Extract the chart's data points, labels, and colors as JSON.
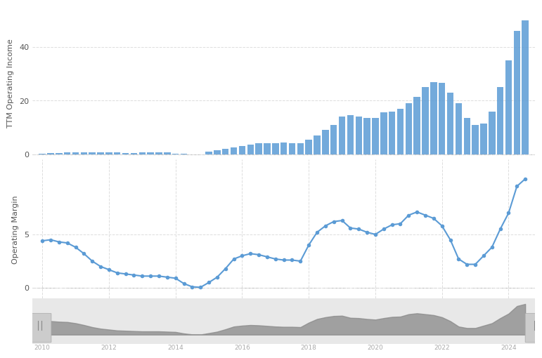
{
  "bar_years": [
    2010.0,
    2010.25,
    2010.5,
    2010.75,
    2011.0,
    2011.25,
    2011.5,
    2011.75,
    2012.0,
    2012.25,
    2012.5,
    2012.75,
    2013.0,
    2013.25,
    2013.5,
    2013.75,
    2014.0,
    2014.25,
    2014.5,
    2014.75,
    2015.0,
    2015.25,
    2015.5,
    2015.75,
    2016.0,
    2016.25,
    2016.5,
    2016.75,
    2017.0,
    2017.25,
    2017.5,
    2017.75,
    2018.0,
    2018.25,
    2018.5,
    2018.75,
    2019.0,
    2019.25,
    2019.5,
    2019.75,
    2020.0,
    2020.25,
    2020.5,
    2020.75,
    2021.0,
    2021.25,
    2021.5,
    2021.75,
    2022.0,
    2022.25,
    2022.5,
    2022.75,
    2023.0,
    2023.25,
    2023.5,
    2023.75,
    2024.0,
    2024.25,
    2024.5
  ],
  "bar_values": [
    0.3,
    0.4,
    0.5,
    0.6,
    0.7,
    0.8,
    0.8,
    0.7,
    0.7,
    0.6,
    0.5,
    0.5,
    0.7,
    0.7,
    0.8,
    0.7,
    0.2,
    0.1,
    0.05,
    0.05,
    1.0,
    1.5,
    2.0,
    2.5,
    3.0,
    3.5,
    4.0,
    4.2,
    4.1,
    4.3,
    4.0,
    4.1,
    5.5,
    7.0,
    9.0,
    11.0,
    14.0,
    14.5,
    14.0,
    13.5,
    13.5,
    15.5,
    16.0,
    17.0,
    19.0,
    21.5,
    25.0,
    27.0,
    26.5,
    23.0,
    19.0,
    13.5,
    11.0,
    11.5,
    16.0,
    25.0,
    35.0,
    46.0,
    50.0
  ],
  "line_years": [
    2010.0,
    2010.25,
    2010.5,
    2010.75,
    2011.0,
    2011.25,
    2011.5,
    2011.75,
    2012.0,
    2012.25,
    2012.5,
    2012.75,
    2013.0,
    2013.25,
    2013.5,
    2013.75,
    2014.0,
    2014.25,
    2014.5,
    2014.75,
    2015.0,
    2015.25,
    2015.5,
    2015.75,
    2016.0,
    2016.25,
    2016.5,
    2016.75,
    2017.0,
    2017.25,
    2017.5,
    2017.75,
    2018.0,
    2018.25,
    2018.5,
    2018.75,
    2019.0,
    2019.25,
    2019.5,
    2019.75,
    2020.0,
    2020.25,
    2020.5,
    2020.75,
    2021.0,
    2021.25,
    2021.5,
    2021.75,
    2022.0,
    2022.25,
    2022.5,
    2022.75,
    2023.0,
    2023.25,
    2023.5,
    2023.75,
    2024.0,
    2024.25,
    2024.5
  ],
  "line_values": [
    4.4,
    4.5,
    4.3,
    4.2,
    3.8,
    3.2,
    2.5,
    2.0,
    1.7,
    1.4,
    1.3,
    1.2,
    1.1,
    1.1,
    1.1,
    1.0,
    0.9,
    0.4,
    0.1,
    0.05,
    0.5,
    1.0,
    1.8,
    2.7,
    3.0,
    3.2,
    3.1,
    2.9,
    2.7,
    2.6,
    2.6,
    2.5,
    4.0,
    5.2,
    5.8,
    6.2,
    6.3,
    5.6,
    5.5,
    5.2,
    5.0,
    5.5,
    5.9,
    6.0,
    6.8,
    7.1,
    6.8,
    6.5,
    5.8,
    4.5,
    2.7,
    2.2,
    2.2,
    3.0,
    3.8,
    5.5,
    7.0,
    9.5,
    10.2
  ],
  "bar_color": "#5b9bd5",
  "line_color": "#5b9bd5",
  "dot_color": "#5b9bd5",
  "bg_color": "#ffffff",
  "grid_color": "#dddddd",
  "bar_ylabel": "TTM Operating Income",
  "line_ylabel": "Operating Margin",
  "xlim": [
    2009.7,
    2024.8
  ],
  "bar_ylim": [
    -2,
    55
  ],
  "line_ylim": [
    -1,
    12
  ],
  "bar_yticks": [
    0,
    20,
    40
  ],
  "line_yticks": [
    0,
    5
  ],
  "xticks": [
    2010,
    2012,
    2014,
    2016,
    2018,
    2020,
    2022,
    2024
  ],
  "scrollbar_bg": "#e8e8e8",
  "scrollbar_fill": "#888888"
}
